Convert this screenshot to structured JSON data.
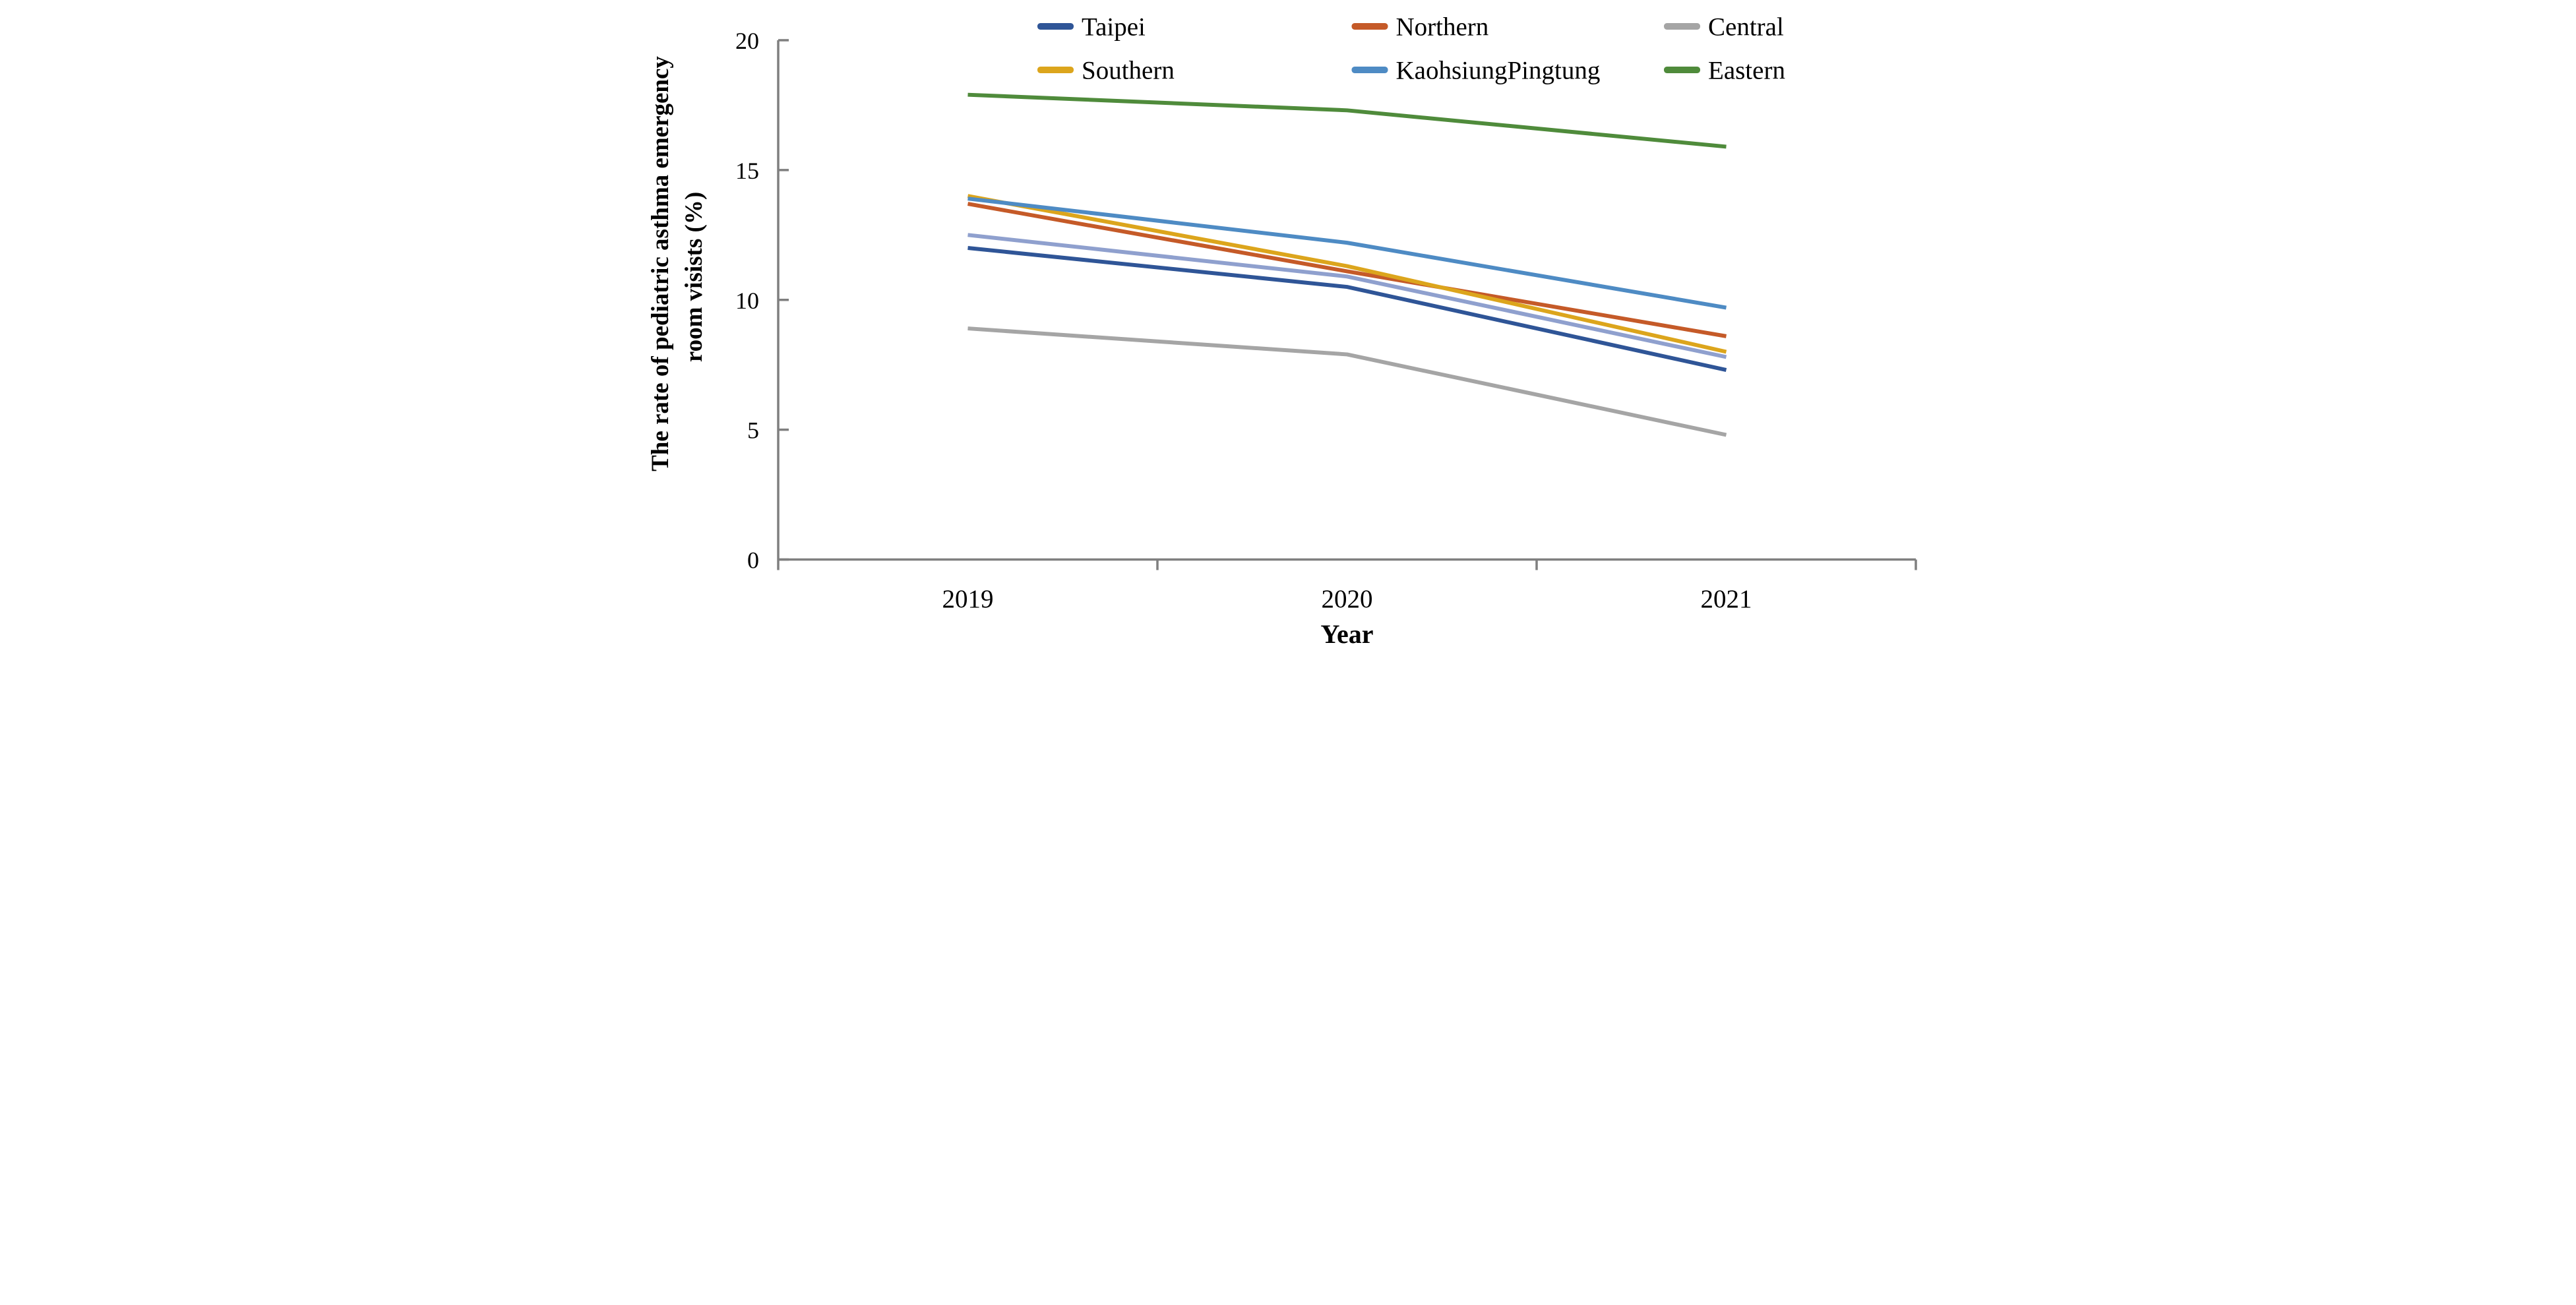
{
  "chart_data": {
    "type": "line",
    "x": [
      "2019",
      "2020",
      "2021"
    ],
    "xlabel": "Year",
    "ylabel_lines": [
      "The rate of pediatric asthma emergency",
      "room visists (%)"
    ],
    "ylim": [
      0,
      20
    ],
    "yticks": [
      0,
      5,
      10,
      15,
      20
    ],
    "grid": false,
    "legend_position": "top-center, two rows of three",
    "axis_color": "#7F7F7F",
    "series": [
      {
        "name": "Taipei",
        "color": "#2F5597",
        "values": [
          12.0,
          10.5,
          7.3
        ],
        "in_legend": true
      },
      {
        "name": "Northern",
        "color": "#C55A28",
        "values": [
          13.7,
          11.1,
          8.6
        ],
        "in_legend": true
      },
      {
        "name": "Central",
        "color": "#A5A5A5",
        "values": [
          8.9,
          7.9,
          4.8
        ],
        "in_legend": true
      },
      {
        "name": "Southern",
        "color": "#DCA51C",
        "values": [
          14.0,
          11.3,
          8.0
        ],
        "in_legend": true
      },
      {
        "name": "KaohsiungPingtung",
        "color": "#4E8BC4",
        "values": [
          13.9,
          12.2,
          9.7
        ],
        "in_legend": true
      },
      {
        "name": "Eastern",
        "color": "#4F8B3B",
        "values": [
          17.9,
          17.3,
          15.9
        ],
        "in_legend": true
      },
      {
        "name": "",
        "color": "#8FA0CE",
        "values": [
          12.5,
          10.9,
          7.8
        ],
        "in_legend": false
      }
    ]
  },
  "legend": {
    "rows": [
      [
        "Taipei",
        "Northern",
        "Central"
      ],
      [
        "Southern",
        "KaohsiungPingtung",
        "Eastern"
      ]
    ]
  }
}
